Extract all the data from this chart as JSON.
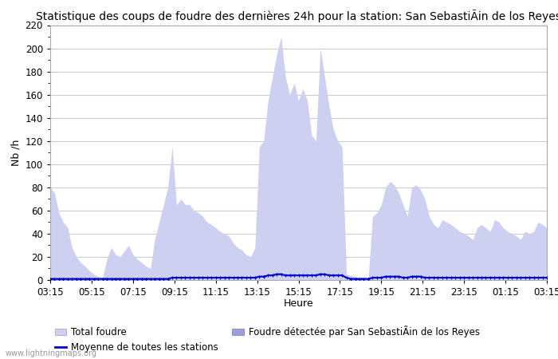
{
  "title": "Statistique des coups de foudre des dernières 24h pour la station: San SebastiÃin de los Reyes",
  "ylabel": "Nb /h",
  "xlabel": "Heure",
  "ylim": [
    0,
    220
  ],
  "yticks": [
    0,
    20,
    40,
    60,
    80,
    100,
    120,
    140,
    160,
    180,
    200,
    220
  ],
  "xtick_labels": [
    "03:15",
    "05:15",
    "07:15",
    "09:15",
    "11:15",
    "13:15",
    "15:15",
    "17:15",
    "19:15",
    "21:15",
    "23:15",
    "01:15",
    "03:15"
  ],
  "bg_color": "#ffffff",
  "fill_color": "#cdd0f0",
  "line_color": "#0000cc",
  "grid_color": "#cccccc",
  "title_fontsize": 10,
  "label_fontsize": 9,
  "tick_fontsize": 8.5,
  "legend_fontsize": 8.5,
  "watermark": "www.lightningmaps.org",
  "total_foudre": [
    80,
    75,
    58,
    50,
    45,
    28,
    20,
    15,
    12,
    8,
    5,
    3,
    2,
    18,
    28,
    22,
    20,
    25,
    30,
    22,
    18,
    15,
    12,
    10,
    35,
    50,
    65,
    80,
    115,
    65,
    70,
    65,
    65,
    60,
    58,
    55,
    50,
    48,
    45,
    42,
    40,
    38,
    32,
    28,
    26,
    22,
    20,
    28,
    115,
    120,
    155,
    175,
    195,
    210,
    175,
    160,
    170,
    155,
    165,
    155,
    125,
    120,
    200,
    175,
    150,
    130,
    120,
    115,
    5,
    4,
    3,
    2,
    2,
    1,
    55,
    58,
    65,
    80,
    85,
    82,
    75,
    65,
    55,
    80,
    82,
    78,
    70,
    55,
    48,
    45,
    52,
    50,
    48,
    45,
    42,
    40,
    38,
    35,
    45,
    48,
    45,
    42,
    52,
    50,
    45,
    42,
    40,
    38,
    35,
    42,
    40,
    42,
    50,
    48,
    45,
    42,
    40
  ],
  "moyenne": [
    1,
    1,
    1,
    1,
    1,
    1,
    1,
    1,
    1,
    1,
    1,
    1,
    1,
    1,
    1,
    1,
    1,
    1,
    1,
    1,
    1,
    1,
    1,
    1,
    1,
    1,
    1,
    1,
    2,
    2,
    2,
    2,
    2,
    2,
    2,
    2,
    2,
    2,
    2,
    2,
    2,
    2,
    2,
    2,
    2,
    2,
    2,
    2,
    3,
    3,
    4,
    4,
    5,
    5,
    4,
    4,
    4,
    4,
    4,
    4,
    4,
    4,
    5,
    5,
    4,
    4,
    4,
    4,
    2,
    1,
    1,
    1,
    1,
    1,
    2,
    2,
    2,
    3,
    3,
    3,
    3,
    2,
    2,
    3,
    3,
    3,
    2,
    2,
    2,
    2,
    2,
    2,
    2,
    2,
    2,
    2,
    2,
    2,
    2,
    2,
    2,
    2,
    2,
    2,
    2,
    2,
    2,
    2,
    2,
    2,
    2,
    2,
    2,
    2,
    2
  ]
}
